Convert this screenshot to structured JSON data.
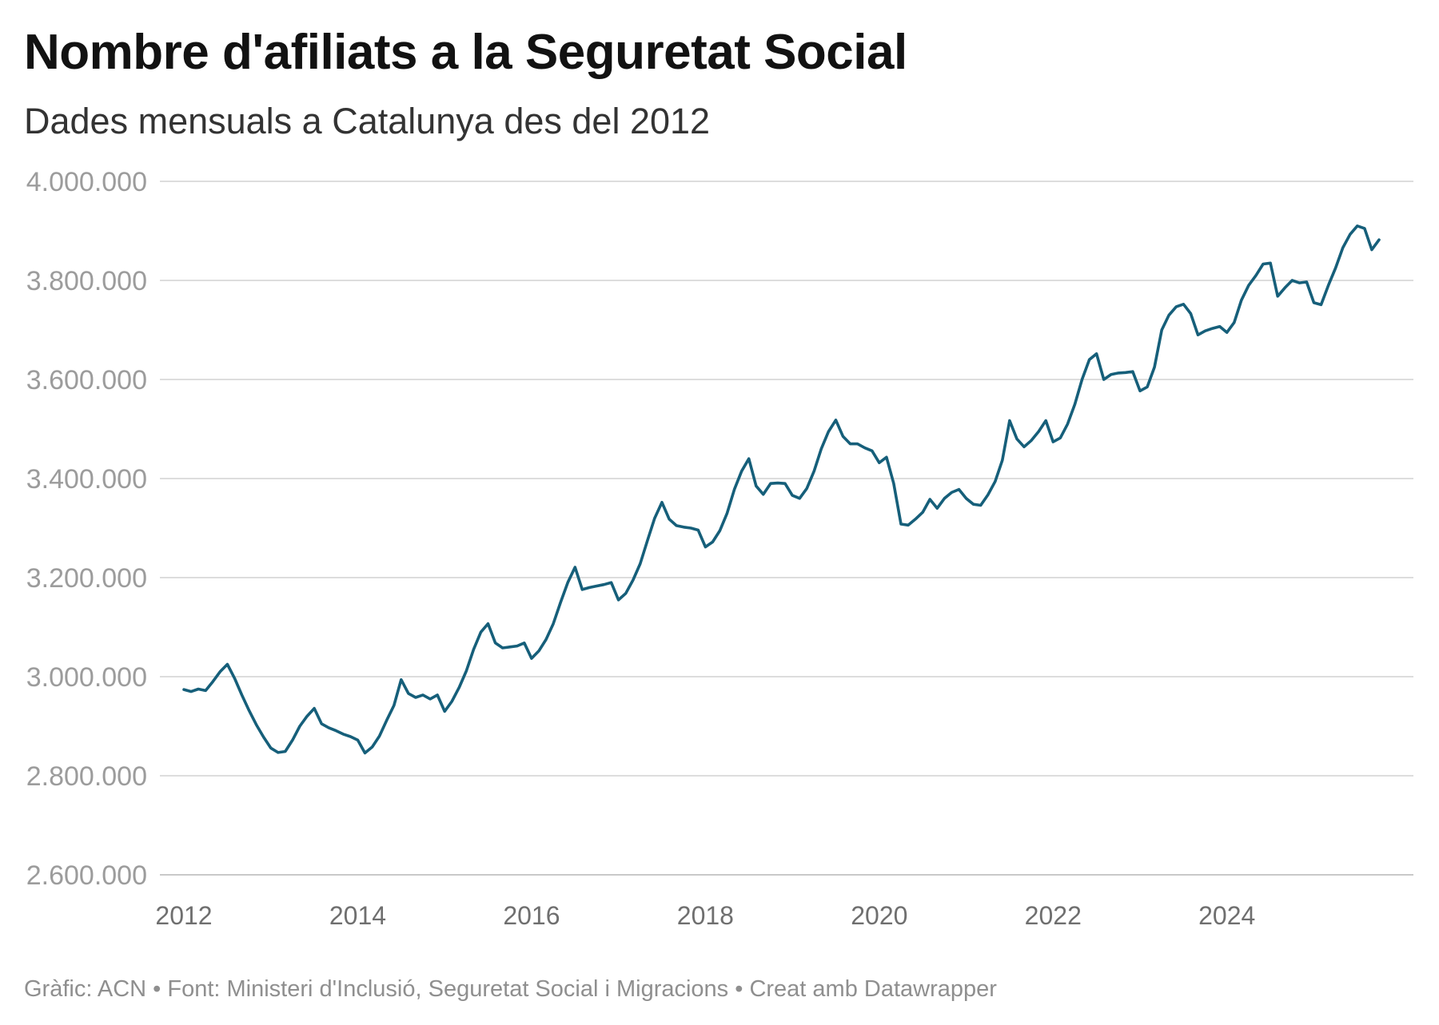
{
  "header": {
    "title": "Nombre d'afiliats a la Seguretat Social",
    "subtitle": "Dades mensuals a Catalunya des del 2012"
  },
  "footer": {
    "text": "Gràfic: ACN • Font: Ministeri d'Inclusió, Seguretat Social i Migracions • Creat amb Datawrapper"
  },
  "chart_data": {
    "type": "line",
    "title": "Nombre d'afiliats a la Seguretat Social",
    "subtitle": "Dades mensuals a Catalunya des del 2012",
    "grid": "horizontal",
    "legend": "none",
    "line_color": "#165f7a",
    "grid_color": "#dddddd",
    "baseline_grid_color": "#c9c9c9",
    "ylim": [
      2600000,
      4000000
    ],
    "y_tick_step": 200000,
    "y_ticks": [
      {
        "value": 4000000,
        "label": "4.000.000"
      },
      {
        "value": 3800000,
        "label": "3.800.000"
      },
      {
        "value": 3600000,
        "label": "3.600.000"
      },
      {
        "value": 3400000,
        "label": "3.400.000"
      },
      {
        "value": 3200000,
        "label": "3.200.000"
      },
      {
        "value": 3000000,
        "label": "3.000.000"
      },
      {
        "value": 2800000,
        "label": "2.800.000"
      },
      {
        "value": 2600000,
        "label": "2.600.000"
      }
    ],
    "x_ticks": [
      {
        "year": 2012,
        "label": "2012"
      },
      {
        "year": 2014,
        "label": "2014"
      },
      {
        "year": 2016,
        "label": "2016"
      },
      {
        "year": 2018,
        "label": "2018"
      },
      {
        "year": 2020,
        "label": "2020"
      },
      {
        "year": 2022,
        "label": "2022"
      },
      {
        "year": 2024,
        "label": "2024"
      }
    ],
    "series": [
      {
        "name": "Afiliats a la Seguretat Social a Catalunya",
        "frequency": "monthly",
        "start": "2012-01",
        "end": "2025-10",
        "values": [
          2974000,
          2970000,
          2975000,
          2972000,
          2990000,
          3010000,
          3025000,
          2997000,
          2963000,
          2932000,
          2903000,
          2878000,
          2856000,
          2847000,
          2849000,
          2872000,
          2900000,
          2920000,
          2936000,
          2905000,
          2897000,
          2891000,
          2884000,
          2879000,
          2872000,
          2846000,
          2858000,
          2880000,
          2912000,
          2942000,
          2994000,
          2966000,
          2958000,
          2963000,
          2955000,
          2963000,
          2930000,
          2950000,
          2978000,
          3012000,
          3055000,
          3090000,
          3107000,
          3068000,
          3058000,
          3060000,
          3062000,
          3068000,
          3037000,
          3052000,
          3075000,
          3107000,
          3150000,
          3190000,
          3221000,
          3176000,
          3180000,
          3183000,
          3186000,
          3190000,
          3155000,
          3168000,
          3195000,
          3228000,
          3275000,
          3320000,
          3352000,
          3318000,
          3305000,
          3302000,
          3300000,
          3296000,
          3262000,
          3272000,
          3295000,
          3330000,
          3378000,
          3415000,
          3440000,
          3385000,
          3368000,
          3390000,
          3391000,
          3390000,
          3366000,
          3360000,
          3380000,
          3415000,
          3460000,
          3495000,
          3518000,
          3485000,
          3470000,
          3470000,
          3462000,
          3456000,
          3432000,
          3443000,
          3390000,
          3308000,
          3306000,
          3318000,
          3332000,
          3358000,
          3340000,
          3360000,
          3372000,
          3378000,
          3360000,
          3348000,
          3346000,
          3367000,
          3394000,
          3437000,
          3517000,
          3480000,
          3464000,
          3477000,
          3495000,
          3517000,
          3474000,
          3482000,
          3510000,
          3550000,
          3600000,
          3640000,
          3652000,
          3600000,
          3610000,
          3613000,
          3614000,
          3616000,
          3577000,
          3585000,
          3625000,
          3700000,
          3730000,
          3747000,
          3752000,
          3733000,
          3690000,
          3698000,
          3703000,
          3707000,
          3695000,
          3715000,
          3760000,
          3790000,
          3810000,
          3833000,
          3835000,
          3768000,
          3785000,
          3800000,
          3795000,
          3797000,
          3755000,
          3751000,
          3790000,
          3825000,
          3866000,
          3893000,
          3910000,
          3905000,
          3862000,
          3882000
        ]
      }
    ]
  }
}
